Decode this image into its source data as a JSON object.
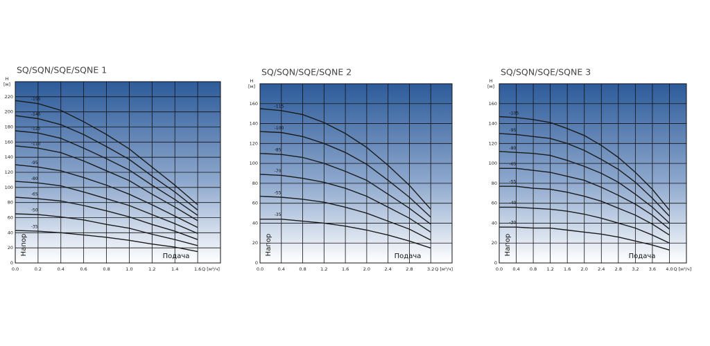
{
  "chart_data": [
    {
      "type": "line",
      "title": "SQ/SQN/SQE/SQNE 1",
      "y_label": "H",
      "y_unit": "[м]",
      "x_label": "Q [м³/ч]",
      "annotations": [
        "Напор",
        "Подача"
      ],
      "grid": true,
      "color": "#1a1a1a",
      "xlim": [
        0,
        1.8
      ],
      "ylim": [
        0,
        240
      ],
      "xticks": [
        {
          "value": 0,
          "label": "0.0"
        },
        0.2,
        0.4,
        0.6,
        0.8,
        {
          "value": 1,
          "label": "1.0"
        },
        1.2,
        1.4,
        1.6
      ],
      "yticks": [
        0,
        20,
        40,
        60,
        80,
        100,
        120,
        140,
        160,
        180,
        200,
        220
      ],
      "x": [
        0,
        0.2,
        0.4,
        0.6,
        0.8,
        1.0,
        1.2,
        1.4,
        1.6
      ],
      "series": [
        {
          "name": "-155",
          "values": [
            215,
            211,
            202,
            187,
            170,
            151,
            127,
            103,
            77
          ]
        },
        {
          "name": "-140",
          "values": [
            195,
            191,
            183,
            170,
            154,
            137,
            115,
            94,
            70
          ]
        },
        {
          "name": "-125",
          "values": [
            175,
            172,
            165,
            152,
            138,
            123,
            103,
            84,
            63
          ]
        },
        {
          "name": "-110",
          "values": [
            155,
            152,
            146,
            135,
            122,
            109,
            91,
            74,
            56
          ]
        },
        {
          "name": "-95",
          "values": [
            130,
            127,
            122,
            113,
            103,
            91,
            77,
            62,
            47
          ]
        },
        {
          "name": "-80",
          "values": [
            108,
            106,
            102,
            94,
            85,
            76,
            64,
            52,
            39
          ]
        },
        {
          "name": "-65",
          "values": [
            87,
            85,
            82,
            76,
            69,
            61,
            51,
            42,
            31
          ]
        },
        {
          "name": "-50",
          "values": [
            65,
            64,
            61,
            57,
            51,
            46,
            38,
            31,
            23
          ]
        },
        {
          "name": "-35",
          "values": [
            43,
            42,
            40,
            37,
            34,
            30,
            25,
            21,
            15
          ]
        }
      ]
    },
    {
      "type": "line",
      "title": "SQ/SQN/SQE/SQNE 2",
      "y_label": "H",
      "y_unit": "[м]",
      "x_label": "Q [м³/ч]",
      "annotations": [
        "Напор",
        "Подача"
      ],
      "grid": true,
      "color": "#1a1a1a",
      "xlim": [
        0,
        3.6
      ],
      "ylim": [
        0,
        180
      ],
      "xticks": [
        {
          "value": 0,
          "label": "0.0"
        },
        0.4,
        0.8,
        1.2,
        1.6,
        {
          "value": 2,
          "label": "2.0"
        },
        2.4,
        2.8,
        3.2
      ],
      "yticks": [
        0,
        20,
        40,
        60,
        80,
        100,
        120,
        140,
        160
      ],
      "x": [
        0,
        0.4,
        0.8,
        1.2,
        1.6,
        2.0,
        2.4,
        2.8,
        3.2
      ],
      "series": [
        {
          "name": "-115",
          "values": [
            155,
            153,
            149,
            141,
            130,
            116,
            98,
            78,
            54
          ]
        },
        {
          "name": "-100",
          "values": [
            132,
            131,
            127,
            120,
            111,
            99,
            83,
            66,
            46
          ]
        },
        {
          "name": "-85",
          "values": [
            110,
            109,
            106,
            100,
            92,
            83,
            69,
            55,
            39
          ]
        },
        {
          "name": "-70",
          "values": [
            89,
            88,
            85,
            81,
            75,
            67,
            56,
            45,
            31
          ]
        },
        {
          "name": "-55",
          "values": [
            67,
            66,
            64,
            61,
            56,
            50,
            42,
            34,
            23
          ]
        },
        {
          "name": "-35",
          "values": [
            44,
            44,
            42,
            40,
            37,
            33,
            28,
            22,
            15
          ]
        }
      ]
    },
    {
      "type": "line",
      "title": "SQ/SQN/SQE/SQNE 3",
      "y_label": "H",
      "y_unit": "[м]",
      "x_label": "Q [м³/ч]",
      "annotations": [
        "Напор",
        "Подача"
      ],
      "grid": true,
      "color": "#1a1a1a",
      "xlim": [
        0,
        4.4
      ],
      "ylim": [
        0,
        180
      ],
      "xticks": [
        {
          "value": 0,
          "label": "0.0"
        },
        0.4,
        0.8,
        1.2,
        1.6,
        {
          "value": 2,
          "label": "2.0"
        },
        2.4,
        2.8,
        3.2,
        3.6,
        {
          "value": 4,
          "label": "4.0"
        }
      ],
      "yticks": [
        0,
        20,
        40,
        60,
        80,
        100,
        120,
        140,
        160
      ],
      "x": [
        0,
        0.4,
        0.8,
        1.2,
        1.6,
        2.0,
        2.4,
        2.8,
        3.2,
        3.6,
        4.0
      ],
      "series": [
        {
          "name": "-105",
          "values": [
            147,
            146,
            144,
            141,
            135,
            128,
            118,
            106,
            91,
            74,
            53
          ]
        },
        {
          "name": "-95",
          "values": [
            130,
            129,
            127,
            125,
            120,
            113,
            104,
            94,
            81,
            65,
            47
          ]
        },
        {
          "name": "-80",
          "values": [
            112,
            111,
            110,
            108,
            103,
            97,
            90,
            81,
            69,
            56,
            40
          ]
        },
        {
          "name": "-65",
          "values": [
            95,
            95,
            93,
            91,
            87,
            83,
            76,
            68,
            59,
            48,
            34
          ]
        },
        {
          "name": "-55",
          "values": [
            77,
            77,
            75,
            74,
            71,
            67,
            62,
            55,
            48,
            39,
            28
          ]
        },
        {
          "name": "-40",
          "values": [
            56,
            56,
            55,
            54,
            52,
            49,
            45,
            40,
            35,
            28,
            20
          ]
        },
        {
          "name": "-30",
          "values": [
            36,
            36,
            35,
            35,
            33,
            31,
            29,
            26,
            22,
            18,
            13
          ]
        }
      ]
    }
  ]
}
